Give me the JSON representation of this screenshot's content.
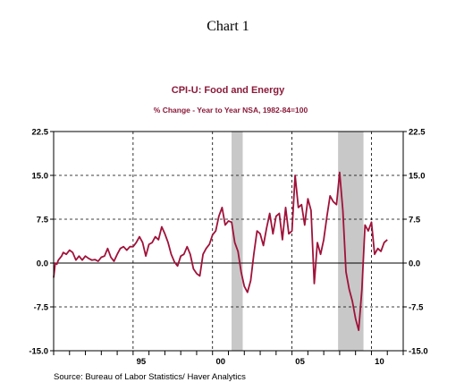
{
  "header": "Chart 1",
  "source": "Source:  Bureau of Labor Statistics/ Haver Analytics",
  "chart_data": {
    "type": "line",
    "title": "CPI-U: Food and Energy",
    "subtitle": "% Change - Year to Year     NSA, 1982-84=100",
    "xlabel": "",
    "ylabel": "",
    "xlim": [
      1990.0,
      2012.0
    ],
    "ylim": [
      -15.0,
      22.5
    ],
    "y_ticks": [
      22.5,
      15.0,
      7.5,
      0.0,
      -7.5,
      -15.0
    ],
    "y_tick_labels": [
      "22.5",
      "15.0",
      "7.5",
      "0.0",
      "-7.5",
      "-15.0"
    ],
    "x_ticks": [
      1995,
      2000,
      2005,
      2010
    ],
    "x_tick_labels": [
      "95",
      "00",
      "05",
      "10"
    ],
    "grid": true,
    "line_color": "#a0123a",
    "recession_color": "#c8c8c8",
    "recessions": [
      [
        2001.2,
        2001.9
      ],
      [
        2007.9,
        2009.5
      ]
    ],
    "series": [
      {
        "x": [
          1990.0,
          1990.1,
          1990.2,
          1990.3,
          1990.5,
          1990.6,
          1990.8,
          1991.0,
          1991.2,
          1991.4,
          1991.6,
          1991.8,
          1992.0,
          1992.2,
          1992.4,
          1992.6,
          1992.8,
          1993.0,
          1993.2,
          1993.4,
          1993.6,
          1993.8,
          1994.0,
          1994.2,
          1994.4,
          1994.6,
          1994.8,
          1995.0,
          1995.2,
          1995.4,
          1995.6,
          1995.8,
          1996.0,
          1996.2,
          1996.4,
          1996.6,
          1996.8,
          1997.0,
          1997.2,
          1997.4,
          1997.6,
          1997.8,
          1998.0,
          1998.2,
          1998.4,
          1998.6,
          1998.8,
          1999.0,
          1999.2,
          1999.4,
          1999.6,
          1999.8,
          2000.0,
          2000.2,
          2000.4,
          2000.6,
          2000.8,
          2001.0,
          2001.2,
          2001.4,
          2001.6,
          2001.8,
          2002.0,
          2002.2,
          2002.4,
          2002.6,
          2002.8,
          2003.0,
          2003.2,
          2003.4,
          2003.6,
          2003.8,
          2004.0,
          2004.2,
          2004.4,
          2004.6,
          2004.8,
          2005.0,
          2005.2,
          2005.4,
          2005.6,
          2005.8,
          2006.0,
          2006.2,
          2006.4,
          2006.6,
          2006.8,
          2007.0,
          2007.2,
          2007.4,
          2007.6,
          2007.8,
          2008.0,
          2008.2,
          2008.4,
          2008.6,
          2008.8,
          2009.0,
          2009.2,
          2009.4,
          2009.6,
          2009.8,
          2010.0,
          2010.2,
          2010.4,
          2010.6,
          2010.8,
          2011.0
        ],
        "y": [
          -2.5,
          0.0,
          -0.2,
          0.5,
          1.2,
          1.8,
          1.5,
          2.2,
          1.8,
          0.5,
          1.2,
          0.5,
          1.2,
          0.8,
          0.5,
          0.6,
          0.3,
          1.0,
          1.2,
          2.5,
          1.0,
          0.3,
          1.5,
          2.5,
          2.8,
          2.2,
          2.8,
          2.8,
          3.5,
          4.5,
          3.5,
          1.2,
          3.2,
          3.5,
          4.5,
          4.0,
          6.2,
          5.0,
          3.5,
          1.5,
          0.2,
          -0.5,
          1.2,
          1.5,
          2.8,
          1.5,
          -1.0,
          -1.8,
          -2.2,
          1.5,
          2.5,
          3.2,
          4.8,
          5.5,
          8.0,
          9.5,
          6.5,
          7.2,
          7.0,
          3.5,
          2.0,
          -1.5,
          -4.0,
          -5.0,
          -3.0,
          1.5,
          5.5,
          5.0,
          3.0,
          6.0,
          8.5,
          5.0,
          8.0,
          8.5,
          4.0,
          9.5,
          5.0,
          5.5,
          15.0,
          9.5,
          10.0,
          6.5,
          11.0,
          9.0,
          -3.5,
          3.5,
          1.5,
          4.0,
          8.0,
          11.5,
          10.5,
          10.0,
          15.5,
          9.0,
          -1.5,
          -4.5,
          -6.5,
          -9.5,
          -11.5,
          -4.5,
          6.5,
          5.5,
          7.0,
          1.5,
          2.5,
          2.0,
          3.5,
          4.0
        ]
      }
    ]
  }
}
